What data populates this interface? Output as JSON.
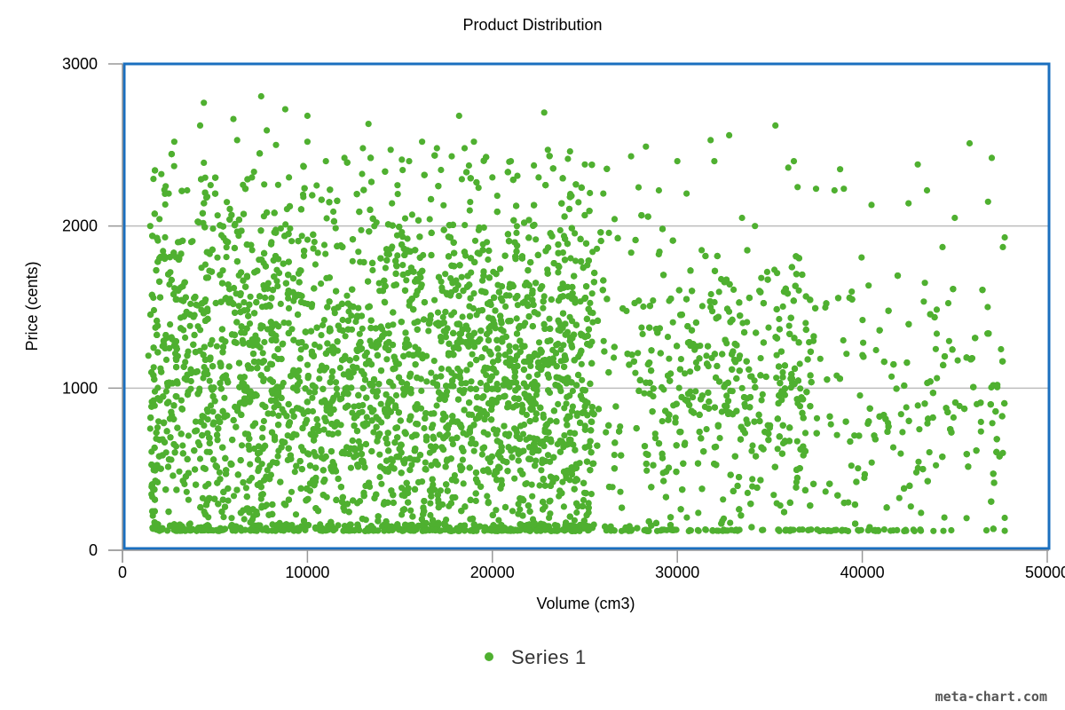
{
  "chart_data": {
    "type": "scatter",
    "title": "Product Distribution",
    "xlabel": "Volume (cm3)",
    "ylabel": "Price (cents)",
    "xlim": [
      0,
      50000
    ],
    "ylim": [
      0,
      3000
    ],
    "x_ticks": [
      "0",
      "10000",
      "20000",
      "30000",
      "40000",
      "50000"
    ],
    "y_ticks": [
      "0",
      "1000",
      "2000",
      "3000"
    ],
    "grid": "horizontal",
    "legend_position": "bottom",
    "series": [
      {
        "name": "Series 1",
        "color": "#4fb030",
        "points": [
          [
            1500,
            2000
          ],
          [
            1400,
            1200
          ],
          [
            1500,
            750
          ],
          [
            1600,
            400
          ],
          [
            2000,
            120
          ],
          [
            2500,
            2200
          ],
          [
            2800,
            2520
          ],
          [
            3000,
            1900
          ],
          [
            3500,
            2220
          ],
          [
            4200,
            2620
          ],
          [
            4400,
            2760
          ],
          [
            4400,
            2390
          ],
          [
            6000,
            2660
          ],
          [
            6200,
            2530
          ],
          [
            7000,
            2300
          ],
          [
            7500,
            2800
          ],
          [
            7800,
            2590
          ],
          [
            8300,
            2500
          ],
          [
            8800,
            2720
          ],
          [
            9000,
            2300
          ],
          [
            10000,
            2680
          ],
          [
            10000,
            2520
          ],
          [
            10500,
            2250
          ],
          [
            11000,
            2400
          ],
          [
            12000,
            2420
          ],
          [
            13000,
            2480
          ],
          [
            13300,
            2630
          ],
          [
            14500,
            2470
          ],
          [
            15500,
            2400
          ],
          [
            16200,
            2520
          ],
          [
            17000,
            2480
          ],
          [
            17800,
            2430
          ],
          [
            18200,
            2680
          ],
          [
            18500,
            2480
          ],
          [
            19000,
            2520
          ],
          [
            20000,
            2300
          ],
          [
            21000,
            2400
          ],
          [
            22500,
            2300
          ],
          [
            22800,
            2700
          ],
          [
            23000,
            2470
          ],
          [
            24200,
            2460
          ],
          [
            25000,
            2380
          ],
          [
            26000,
            2200
          ],
          [
            27500,
            2430
          ],
          [
            28300,
            2490
          ],
          [
            29000,
            2220
          ],
          [
            30000,
            2400
          ],
          [
            30500,
            2200
          ],
          [
            31800,
            2530
          ],
          [
            32000,
            2400
          ],
          [
            32800,
            2560
          ],
          [
            33500,
            2050
          ],
          [
            34200,
            2000
          ],
          [
            35300,
            2620
          ],
          [
            36000,
            2360
          ],
          [
            36300,
            2400
          ],
          [
            36500,
            2240
          ],
          [
            37500,
            2230
          ],
          [
            38500,
            2220
          ],
          [
            38800,
            2350
          ],
          [
            39000,
            2230
          ],
          [
            40500,
            2130
          ],
          [
            42500,
            2140
          ],
          [
            43000,
            2380
          ],
          [
            43500,
            2220
          ],
          [
            45000,
            2050
          ],
          [
            45800,
            2510
          ],
          [
            46800,
            2150
          ],
          [
            47000,
            2420
          ],
          [
            47700,
            1930
          ],
          [
            47600,
            1870
          ],
          [
            47500,
            1240
          ],
          [
            47300,
            1020
          ],
          [
            47600,
            600
          ],
          [
            47700,
            200
          ],
          [
            47700,
            120
          ]
        ]
      }
    ]
  },
  "legend": {
    "label": "Series 1"
  },
  "watermark": "meta-chart.com"
}
